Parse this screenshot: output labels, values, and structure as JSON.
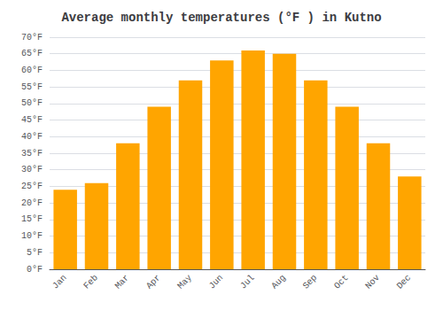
{
  "chart_data": {
    "type": "bar",
    "title": "Average monthly temperatures (°F ) in Kutno",
    "categories": [
      "Jan",
      "Feb",
      "Mar",
      "Apr",
      "May",
      "Jun",
      "Jul",
      "Aug",
      "Sep",
      "Oct",
      "Nov",
      "Dec"
    ],
    "values": [
      24,
      26,
      38,
      49,
      57,
      63,
      66,
      65,
      57,
      49,
      38,
      28
    ],
    "color": "#FFA500",
    "ylim": [
      0,
      70
    ],
    "yticks": [
      {
        "value": 0,
        "label": "0°F"
      },
      {
        "value": 5,
        "label": "5°F"
      },
      {
        "value": 10,
        "label": "10°F"
      },
      {
        "value": 15,
        "label": "15°F"
      },
      {
        "value": 20,
        "label": "20°F"
      },
      {
        "value": 25,
        "label": "25°F"
      },
      {
        "value": 30,
        "label": "30°F"
      },
      {
        "value": 35,
        "label": "35°F"
      },
      {
        "value": 40,
        "label": "40°F"
      },
      {
        "value": 45,
        "label": "45°F"
      },
      {
        "value": 50,
        "label": "50°F"
      },
      {
        "value": 55,
        "label": "55°F"
      },
      {
        "value": 60,
        "label": "60°F"
      },
      {
        "value": 65,
        "label": "65°F"
      },
      {
        "value": 70,
        "label": "70°F"
      }
    ],
    "grid": true
  }
}
